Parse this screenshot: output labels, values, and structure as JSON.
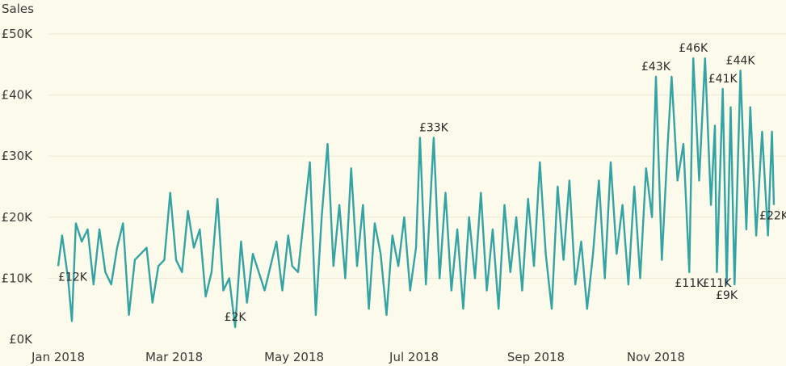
{
  "chart_data": {
    "type": "line",
    "title": "",
    "ylabel": "Sales",
    "xlabel": "",
    "ylim": [
      0,
      50000
    ],
    "xlim": [
      "2018-01-01",
      "2018-12-31"
    ],
    "grid": true,
    "colors": {
      "line": "#34a3a3",
      "background": "#fcfaea",
      "grid": "#efe9d6"
    },
    "y_ticks": [
      {
        "value": 0,
        "label": "£0K"
      },
      {
        "value": 10000,
        "label": "£10K"
      },
      {
        "value": 20000,
        "label": "£20K"
      },
      {
        "value": 30000,
        "label": "£30K"
      },
      {
        "value": 40000,
        "label": "£40K"
      },
      {
        "value": 50000,
        "label": "£50K"
      }
    ],
    "x_ticks": [
      {
        "date": "2018-01-01",
        "label": "Jan 2018"
      },
      {
        "date": "2018-03-01",
        "label": "Mar 2018"
      },
      {
        "date": "2018-05-01",
        "label": "May 2018"
      },
      {
        "date": "2018-07-01",
        "label": "Jul 2018"
      },
      {
        "date": "2018-09-01",
        "label": "Sep 2018"
      },
      {
        "date": "2018-11-01",
        "label": "Nov 2018"
      }
    ],
    "series": [
      {
        "points": [
          [
            "2018-01-01",
            12000
          ],
          [
            "2018-01-03",
            17000
          ],
          [
            "2018-01-06",
            10000
          ],
          [
            "2018-01-08",
            3000
          ],
          [
            "2018-01-10",
            19000
          ],
          [
            "2018-01-13",
            16000
          ],
          [
            "2018-01-16",
            18000
          ],
          [
            "2018-01-19",
            9000
          ],
          [
            "2018-01-22",
            18000
          ],
          [
            "2018-01-25",
            11000
          ],
          [
            "2018-01-28",
            9000
          ],
          [
            "2018-01-31",
            15000
          ],
          [
            "2018-02-03",
            19000
          ],
          [
            "2018-02-06",
            4000
          ],
          [
            "2018-02-09",
            13000
          ],
          [
            "2018-02-12",
            14000
          ],
          [
            "2018-02-15",
            15000
          ],
          [
            "2018-02-18",
            6000
          ],
          [
            "2018-02-21",
            12000
          ],
          [
            "2018-02-24",
            13000
          ],
          [
            "2018-02-27",
            24000
          ],
          [
            "2018-03-02",
            13000
          ],
          [
            "2018-03-05",
            11000
          ],
          [
            "2018-03-08",
            21000
          ],
          [
            "2018-03-11",
            15000
          ],
          [
            "2018-03-14",
            18000
          ],
          [
            "2018-03-17",
            7000
          ],
          [
            "2018-03-20",
            11000
          ],
          [
            "2018-03-23",
            23000
          ],
          [
            "2018-03-26",
            8000
          ],
          [
            "2018-03-29",
            10000
          ],
          [
            "2018-04-01",
            2000
          ],
          [
            "2018-04-04",
            16000
          ],
          [
            "2018-04-07",
            6000
          ],
          [
            "2018-04-10",
            14000
          ],
          [
            "2018-04-13",
            11000
          ],
          [
            "2018-04-16",
            8000
          ],
          [
            "2018-04-19",
            12000
          ],
          [
            "2018-04-22",
            16000
          ],
          [
            "2018-04-25",
            8000
          ],
          [
            "2018-04-28",
            17000
          ],
          [
            "2018-04-30",
            12000
          ],
          [
            "2018-05-03",
            11000
          ],
          [
            "2018-05-06",
            20000
          ],
          [
            "2018-05-09",
            29000
          ],
          [
            "2018-05-12",
            4000
          ],
          [
            "2018-05-15",
            20000
          ],
          [
            "2018-05-18",
            32000
          ],
          [
            "2018-05-21",
            12000
          ],
          [
            "2018-05-24",
            22000
          ],
          [
            "2018-05-27",
            10000
          ],
          [
            "2018-05-30",
            28000
          ],
          [
            "2018-06-02",
            12000
          ],
          [
            "2018-06-05",
            22000
          ],
          [
            "2018-06-08",
            5000
          ],
          [
            "2018-06-11",
            19000
          ],
          [
            "2018-06-14",
            14000
          ],
          [
            "2018-06-17",
            4000
          ],
          [
            "2018-06-20",
            17000
          ],
          [
            "2018-06-23",
            12000
          ],
          [
            "2018-06-26",
            20000
          ],
          [
            "2018-06-29",
            8000
          ],
          [
            "2018-07-02",
            15000
          ],
          [
            "2018-07-04",
            33000
          ],
          [
            "2018-07-07",
            9000
          ],
          [
            "2018-07-11",
            33000
          ],
          [
            "2018-07-14",
            10000
          ],
          [
            "2018-07-17",
            24000
          ],
          [
            "2018-07-20",
            8000
          ],
          [
            "2018-07-23",
            18000
          ],
          [
            "2018-07-26",
            5000
          ],
          [
            "2018-07-29",
            20000
          ],
          [
            "2018-08-01",
            10000
          ],
          [
            "2018-08-04",
            24000
          ],
          [
            "2018-08-07",
            8000
          ],
          [
            "2018-08-10",
            18000
          ],
          [
            "2018-08-13",
            5000
          ],
          [
            "2018-08-16",
            22000
          ],
          [
            "2018-08-19",
            11000
          ],
          [
            "2018-08-22",
            20000
          ],
          [
            "2018-08-25",
            8000
          ],
          [
            "2018-08-28",
            23000
          ],
          [
            "2018-08-31",
            12000
          ],
          [
            "2018-09-03",
            29000
          ],
          [
            "2018-09-06",
            14000
          ],
          [
            "2018-09-09",
            5000
          ],
          [
            "2018-09-12",
            25000
          ],
          [
            "2018-09-15",
            13000
          ],
          [
            "2018-09-18",
            26000
          ],
          [
            "2018-09-21",
            9000
          ],
          [
            "2018-09-24",
            16000
          ],
          [
            "2018-09-27",
            5000
          ],
          [
            "2018-09-30",
            14000
          ],
          [
            "2018-10-03",
            26000
          ],
          [
            "2018-10-06",
            10000
          ],
          [
            "2018-10-09",
            29000
          ],
          [
            "2018-10-12",
            14000
          ],
          [
            "2018-10-15",
            22000
          ],
          [
            "2018-10-18",
            9000
          ],
          [
            "2018-10-21",
            25000
          ],
          [
            "2018-10-24",
            10000
          ],
          [
            "2018-10-27",
            28000
          ],
          [
            "2018-10-30",
            20000
          ],
          [
            "2018-11-01",
            43000
          ],
          [
            "2018-11-04",
            13000
          ],
          [
            "2018-11-07",
            32000
          ],
          [
            "2018-11-09",
            43000
          ],
          [
            "2018-11-12",
            26000
          ],
          [
            "2018-11-15",
            32000
          ],
          [
            "2018-11-18",
            11000
          ],
          [
            "2018-11-20",
            46000
          ],
          [
            "2018-11-23",
            26000
          ],
          [
            "2018-11-26",
            46000
          ],
          [
            "2018-11-29",
            22000
          ],
          [
            "2018-12-01",
            35000
          ],
          [
            "2018-12-02",
            11000
          ],
          [
            "2018-12-05",
            41000
          ],
          [
            "2018-12-07",
            9000
          ],
          [
            "2018-12-09",
            38000
          ],
          [
            "2018-12-11",
            9000
          ],
          [
            "2018-12-14",
            44000
          ],
          [
            "2018-12-17",
            18000
          ],
          [
            "2018-12-19",
            38000
          ],
          [
            "2018-12-22",
            17000
          ],
          [
            "2018-12-25",
            34000
          ],
          [
            "2018-12-28",
            17000
          ],
          [
            "2018-12-30",
            34000
          ],
          [
            "2018-12-31",
            22000
          ]
        ]
      }
    ],
    "annotations": [
      {
        "date": "2018-01-01",
        "value": 12000,
        "label": "£12K",
        "position": "below"
      },
      {
        "date": "2018-04-01",
        "value": 2000,
        "label": "£2K",
        "position": "above"
      },
      {
        "date": "2018-07-11",
        "value": 33000,
        "label": "£33K",
        "position": "above"
      },
      {
        "date": "2018-11-01",
        "value": 43000,
        "label": "£43K",
        "position": "above"
      },
      {
        "date": "2018-11-20",
        "value": 46000,
        "label": "£46K",
        "position": "above"
      },
      {
        "date": "2018-12-05",
        "value": 41000,
        "label": "£41K",
        "position": "above"
      },
      {
        "date": "2018-12-14",
        "value": 44000,
        "label": "£44K",
        "position": "above"
      },
      {
        "date": "2018-11-18",
        "value": 11000,
        "label": "£11K",
        "position": "below"
      },
      {
        "date": "2018-12-02",
        "value": 11000,
        "label": "£11K",
        "position": "below"
      },
      {
        "date": "2018-12-07",
        "value": 9000,
        "label": "£9K",
        "position": "below"
      },
      {
        "date": "2018-12-31",
        "value": 22000,
        "label": "£22K",
        "position": "below"
      }
    ]
  }
}
